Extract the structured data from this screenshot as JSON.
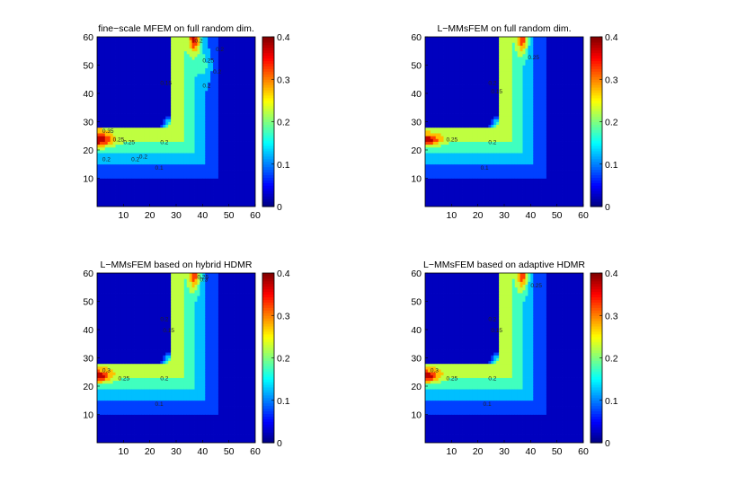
{
  "figure": {
    "axis_ticks": [
      "10",
      "20",
      "30",
      "40",
      "50",
      "60"
    ],
    "colorbar_ticks": [
      "0",
      "0.1",
      "0.2",
      "0.3",
      "0.4"
    ]
  },
  "chart_data": [
    {
      "type": "heatmap",
      "title": "fine−scale MFEM on full random dim.",
      "xlim": [
        0,
        60
      ],
      "ylim": [
        0,
        60
      ],
      "clim": [
        0,
        0.4
      ],
      "colormap": "jet",
      "contour_levels": [
        0.1,
        0.15,
        0.2,
        0.25,
        0.3,
        0.35
      ],
      "contour_labels": [
        "0.35",
        "0.25",
        "0.25",
        "0.2",
        "0.2",
        "0.2",
        "0.2",
        "0.15",
        "0.2",
        "0.2",
        "0.2",
        "0.1",
        "0.25",
        "0.2"
      ]
    },
    {
      "type": "heatmap",
      "title": "L−MMsFEM  on full random dim.",
      "xlim": [
        0,
        60
      ],
      "ylim": [
        0,
        60
      ],
      "clim": [
        0,
        0.4
      ],
      "colormap": "jet",
      "contour_levels": [
        0.1,
        0.15,
        0.2,
        0.25,
        0.3,
        0.35
      ],
      "contour_labels": [
        "0.25",
        "0.2",
        "0.15",
        "0.2",
        "0.1",
        "0.25"
      ]
    },
    {
      "type": "heatmap",
      "title": "L−MMsFEM based on hybrid HDMR",
      "xlim": [
        0,
        60
      ],
      "ylim": [
        0,
        60
      ],
      "clim": [
        0,
        0.4
      ],
      "colormap": "jet",
      "contour_levels": [
        0.1,
        0.15,
        0.2,
        0.25,
        0.3,
        0.35
      ],
      "contour_labels": [
        "0.3",
        "0.25",
        "0.2",
        "0.15",
        "0.2",
        "0.1",
        "0.25",
        "0.3"
      ]
    },
    {
      "type": "heatmap",
      "title": "L−MMsFEM based on adaptive HDMR",
      "xlim": [
        0,
        60
      ],
      "ylim": [
        0,
        60
      ],
      "clim": [
        0,
        0.4
      ],
      "colormap": "jet",
      "contour_levels": [
        0.1,
        0.15,
        0.2,
        0.25,
        0.3,
        0.35
      ],
      "contour_labels": [
        "0.3",
        "0.25",
        "0.2",
        "0.15",
        "0.2",
        "0.1",
        "0.25"
      ]
    }
  ]
}
